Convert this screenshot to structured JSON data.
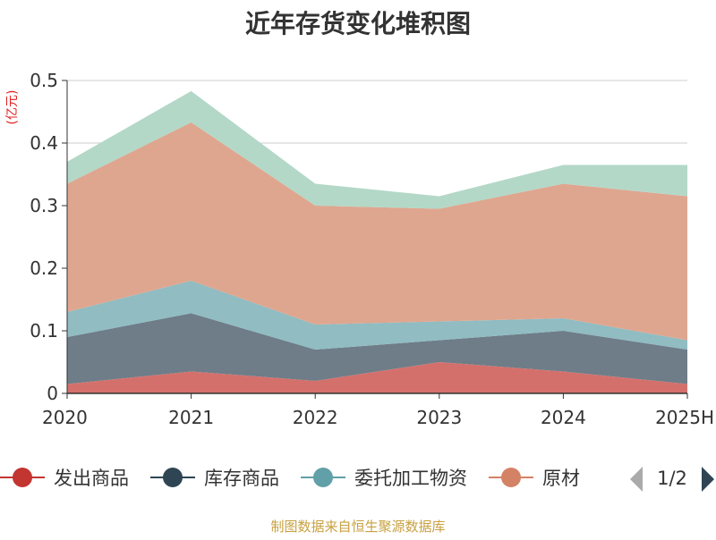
{
  "chart_data": {
    "type": "area",
    "stacked": true,
    "title": "近年存货变化堆积图",
    "unit_label": "(亿元)",
    "categories": [
      "2020",
      "2021",
      "2022",
      "2023",
      "2024",
      "2025H"
    ],
    "ylim": [
      0,
      0.5
    ],
    "yticks": [
      "0",
      "0.1",
      "0.2",
      "0.3",
      "0.4",
      "0.5"
    ],
    "grid": true,
    "series": [
      {
        "name": "发出商品",
        "color": "#c23531",
        "fill": "#d4706c",
        "values": [
          0.015,
          0.035,
          0.02,
          0.05,
          0.035,
          0.015
        ]
      },
      {
        "name": "库存商品",
        "color": "#2f4554",
        "fill": "#6e7d88",
        "values": [
          0.075,
          0.093,
          0.05,
          0.035,
          0.065,
          0.055
        ]
      },
      {
        "name": "委托加工物资",
        "color": "#61a0a8",
        "fill": "#90bcc2",
        "values": [
          0.04,
          0.052,
          0.04,
          0.03,
          0.02,
          0.015
        ]
      },
      {
        "name": "原材料",
        "color": "#d48265",
        "fill": "#dfa68f",
        "values": [
          0.205,
          0.253,
          0.19,
          0.18,
          0.215,
          0.23
        ]
      },
      {
        "name": "",
        "color": "#91c7ae",
        "fill": "#b3d8c7",
        "values": [
          0.035,
          0.05,
          0.035,
          0.02,
          0.03,
          0.05
        ]
      }
    ],
    "legend": {
      "placement": "bottom",
      "items": [
        "发出商品",
        "库存商品",
        "委托加工物资",
        "原材"
      ],
      "page_indicator": "1/2"
    },
    "source_note": "制图数据来自恒生聚源数据库"
  }
}
